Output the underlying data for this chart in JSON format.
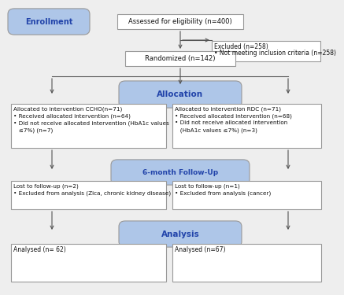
{
  "bg_color": "#eeeeee",
  "box_border_color": "#999999",
  "box_fill_white": "#ffffff",
  "box_fill_blue": "#aec6e8",
  "text_color": "#111111",
  "blue_text_color": "#2244aa",
  "arrow_color": "#555555",
  "enrollment_label": "Enrollment",
  "allocation_label": "Allocation",
  "followup_label": "6-month Follow-Up",
  "analysis_label": "Analysis",
  "box1_text": "Assessed for eligibility (n=400)",
  "box2_line1": "Excluded (n=258)",
  "box2_line2": "• Not meeting inclusion criteria (n=258)",
  "box3_text": "Randomized (n=142)",
  "box4_line1": "Allocated to intervention CCHO(n=71)",
  "box4_line2": "• Received allocated intervention (n=64)",
  "box4_line3": "• Did not receive allocated intervention (HbA1c values",
  "box4_line4": "   ≤7%) (n=7)",
  "box5_line1": "Allocated to intervention RDC (n=71)",
  "box5_line2": "• Received allocated intervention (n=68)",
  "box5_line3": "• Did not receive allocated intervention",
  "box5_line4": "   (HbA1c values ≤7%) (n=3)",
  "box6_line1": "Lost to follow-up (n=2)",
  "box6_line2": "• Excluded from analysis (Zica, chronic kidney disease)",
  "box7_line1": "Lost to follow-up (n=1)",
  "box7_line2": "• Excluded from analysis (cancer)",
  "box8_text": "Analysed (n= 62)",
  "box9_text": "Analysed (n=67)"
}
